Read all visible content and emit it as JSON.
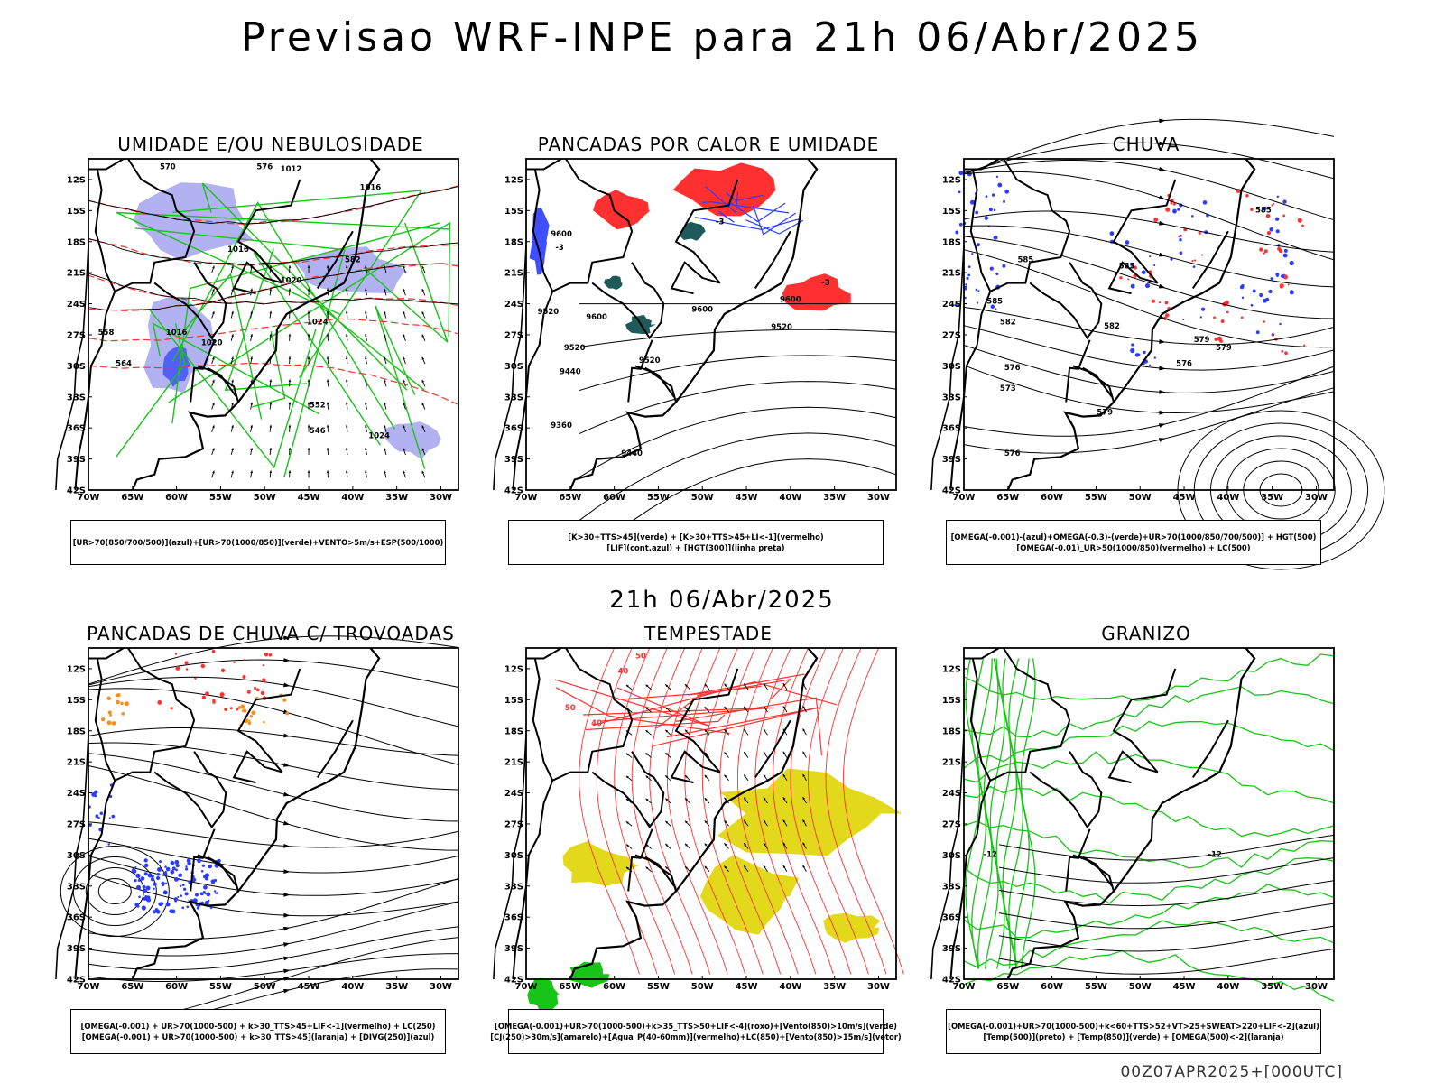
{
  "title": "Previsao WRF-INPE  para 21h 06/Abr/2025",
  "mid_title": "21h 06/Abr/2025",
  "footer": "00Z07APR2025+[000UTC]",
  "axes": {
    "lat_labels": [
      "12S",
      "15S",
      "18S",
      "21S",
      "24S",
      "27S",
      "30S",
      "33S",
      "36S",
      "39S",
      "42S"
    ],
    "lon_labels": [
      "70W",
      "65W",
      "60W",
      "55W",
      "50W",
      "45W",
      "40W",
      "35W",
      "30W"
    ]
  },
  "colors": {
    "blue": "#2a3cff",
    "lightblue": "#9f9fef",
    "green": "#17c417",
    "red": "#ff3030",
    "darkteal": "#1f5a5a",
    "yellow": "#e3d91c",
    "orange": "#ff8c1a"
  },
  "panels": [
    {
      "title": "UMIDADE E/OU NEBULOSIDADE",
      "caption": [
        "[UR>70(850/700/500)](azul)+[UR>70(1000/850)](verde)+VENTO>5m/s+ESP(500/1000)"
      ],
      "contour_labels": [
        "1012",
        "1016",
        "1016",
        "1020",
        "1024",
        "1024",
        "1020",
        "1016",
        "570",
        "576",
        "582",
        "558",
        "564",
        "552",
        "546"
      ]
    },
    {
      "title": "PANCADAS POR CALOR E UMIDADE",
      "caption": [
        "[K>30+TTS>45](verde) + [K>30+TTS>45+LI<-1](vermelho)",
        "[LIF](cont.azul) + [HGT(300)](linha preta)"
      ],
      "contour_labels": [
        "9600",
        "9520",
        "9600",
        "9520",
        "9440",
        "9360",
        "9440",
        "9600",
        "9520",
        "9520",
        "9600",
        "-3",
        "-3",
        "-3"
      ]
    },
    {
      "title": "CHUVA",
      "caption": [
        "[OMEGA(-0.001)-(azul)+OMEGA(-0.3)-(verde)+UR>70(1000/850/700/500)] + HGT(500)",
        "[OMEGA(-0.01)_UR>50(1000/850)(vermelho) + LC(500)"
      ],
      "contour_labels": [
        "585",
        "585",
        "582",
        "585",
        "579",
        "576",
        "573",
        "585",
        "582",
        "576",
        "579",
        "579",
        "576"
      ]
    },
    {
      "title": "PANCADAS DE CHUVA C/ TROVOADAS",
      "caption": [
        "[OMEGA(-0.001) + UR>70(1000-500) + k>30_TTS>45+LIF<-1](vermelho) + LC(250)",
        "[OMEGA(-0.001) + UR>70(1000-500) + k>30_TTS>45](laranja) + [DIVG(250)](azul)"
      ],
      "contour_labels": []
    },
    {
      "title": "TEMPESTADE",
      "caption": [
        "[OMEGA(-0.001)+UR>70(1000-500)+k>35_TTS>50+LIF<-4](roxo)+[Vento(850)>10m/s](verde)",
        "[CJ(250)>30m/s](amarelo)+[Agua_P(40-60mm)](vermelho)+LC(850)+[Vento(850)>15m/s](vetor)"
      ],
      "contour_labels": [
        "50",
        "40",
        "50",
        "40"
      ]
    },
    {
      "title": "GRANIZO",
      "caption": [
        "[OMEGA(-0.001)+UR>70(1000-500)+k<60+TTS>52+VT>25+SWEAT>220+LIF<-2](azul)",
        "[Temp(500)](preto) + [Temp(850)](verde) + [OMEGA(500)<-2](laranja)"
      ],
      "contour_labels": [
        "-12",
        "-12"
      ]
    }
  ]
}
